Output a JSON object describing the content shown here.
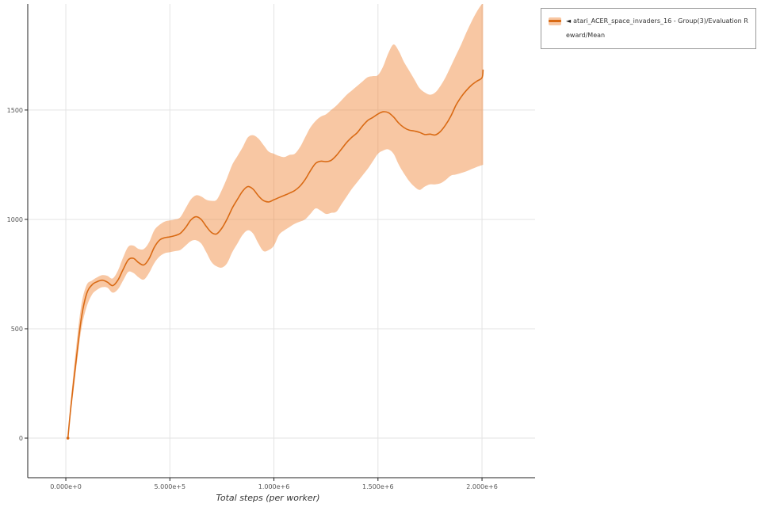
{
  "chart_data": {
    "type": "line",
    "title": "",
    "xlabel": "Total steps (per worker)",
    "ylabel": "",
    "grid": true,
    "legend_position": "top-right",
    "xlim": [
      -183000,
      2255000
    ],
    "ylim": [
      -181,
      1985
    ],
    "x_ticks": [
      {
        "v": 0,
        "label": "0.000e+0"
      },
      {
        "v": 500000,
        "label": "5.000e+5"
      },
      {
        "v": 1000000,
        "label": "1.000e+6"
      },
      {
        "v": 1500000,
        "label": "1.500e+6"
      },
      {
        "v": 2000000,
        "label": "2.000e+6"
      }
    ],
    "y_ticks": [
      {
        "v": 0,
        "label": "0"
      },
      {
        "v": 500,
        "label": "500"
      },
      {
        "v": 1000,
        "label": "1000"
      },
      {
        "v": 1500,
        "label": "1500"
      }
    ],
    "series": [
      {
        "name": "atari_ACER_space_invaders_16 - Group(3)/Evaluation Reward/Mean",
        "color": "#d96a14",
        "band_color": "#ef8233",
        "band_opacity": 0.45,
        "x": [
          10000,
          25000,
          50000,
          75000,
          100000,
          125000,
          150000,
          175000,
          200000,
          225000,
          250000,
          275000,
          300000,
          325000,
          350000,
          375000,
          400000,
          425000,
          450000,
          475000,
          500000,
          525000,
          550000,
          575000,
          600000,
          625000,
          650000,
          675000,
          700000,
          725000,
          750000,
          775000,
          800000,
          825000,
          850000,
          875000,
          900000,
          925000,
          950000,
          975000,
          1000000,
          1025000,
          1050000,
          1075000,
          1100000,
          1125000,
          1150000,
          1175000,
          1200000,
          1225000,
          1250000,
          1275000,
          1300000,
          1325000,
          1350000,
          1375000,
          1400000,
          1425000,
          1450000,
          1475000,
          1500000,
          1525000,
          1550000,
          1575000,
          1600000,
          1625000,
          1650000,
          1675000,
          1700000,
          1725000,
          1750000,
          1775000,
          1800000,
          1825000,
          1850000,
          1875000,
          1900000,
          1925000,
          1950000,
          1975000,
          2000000,
          2005000
        ],
        "mean": [
          0,
          150,
          360,
          550,
          660,
          700,
          715,
          722,
          713,
          697,
          722,
          770,
          815,
          822,
          802,
          792,
          820,
          872,
          905,
          916,
          920,
          926,
          936,
          962,
          996,
          1012,
          1000,
          968,
          940,
          934,
          960,
          1002,
          1052,
          1092,
          1130,
          1150,
          1138,
          1108,
          1086,
          1080,
          1090,
          1100,
          1110,
          1120,
          1132,
          1152,
          1182,
          1222,
          1256,
          1266,
          1264,
          1270,
          1292,
          1322,
          1352,
          1376,
          1396,
          1426,
          1452,
          1466,
          1482,
          1492,
          1488,
          1468,
          1440,
          1420,
          1408,
          1404,
          1398,
          1388,
          1390,
          1386,
          1402,
          1432,
          1472,
          1522,
          1560,
          1590,
          1614,
          1632,
          1648,
          1685
        ],
        "lower": [
          0,
          120,
          320,
          500,
          600,
          655,
          678,
          690,
          688,
          665,
          680,
          720,
          760,
          755,
          735,
          725,
          755,
          800,
          830,
          845,
          850,
          855,
          860,
          880,
          900,
          905,
          890,
          850,
          805,
          785,
          780,
          800,
          850,
          890,
          930,
          950,
          935,
          890,
          855,
          860,
          880,
          930,
          950,
          965,
          980,
          990,
          1000,
          1025,
          1050,
          1040,
          1025,
          1030,
          1035,
          1070,
          1105,
          1140,
          1170,
          1200,
          1230,
          1265,
          1300,
          1315,
          1320,
          1300,
          1250,
          1210,
          1175,
          1150,
          1135,
          1150,
          1160,
          1160,
          1165,
          1180,
          1200,
          1205,
          1212,
          1220,
          1230,
          1240,
          1248,
          1250
        ],
        "upper": [
          0,
          180,
          420,
          610,
          700,
          720,
          735,
          745,
          742,
          730,
          765,
          825,
          875,
          880,
          865,
          865,
          895,
          950,
          975,
          990,
          995,
          1000,
          1010,
          1050,
          1090,
          1110,
          1105,
          1090,
          1085,
          1090,
          1135,
          1190,
          1250,
          1290,
          1330,
          1375,
          1385,
          1370,
          1340,
          1310,
          1300,
          1290,
          1285,
          1295,
          1300,
          1330,
          1375,
          1420,
          1450,
          1470,
          1480,
          1500,
          1520,
          1545,
          1570,
          1590,
          1610,
          1630,
          1650,
          1655,
          1660,
          1700,
          1760,
          1800,
          1770,
          1720,
          1680,
          1640,
          1600,
          1580,
          1570,
          1580,
          1610,
          1650,
          1700,
          1750,
          1800,
          1855,
          1905,
          1950,
          1985,
          1985
        ]
      }
    ]
  },
  "legend": {
    "collapse_icon": "◄",
    "label": "atari_ACER_space_invaders_16 - Group(3)/Evaluation Reward/Mean"
  },
  "axes": {
    "x_label": "Total steps (per worker)"
  }
}
